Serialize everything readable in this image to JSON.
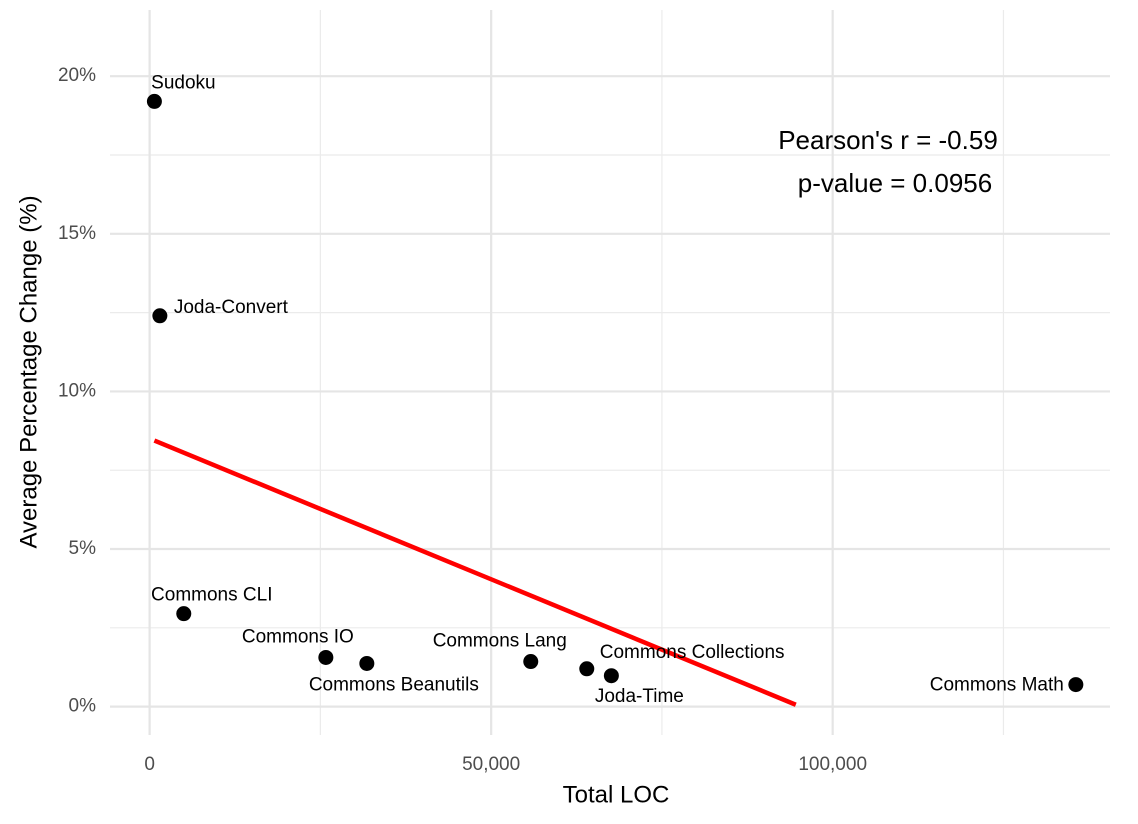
{
  "chart_data": {
    "type": "scatter",
    "x_label": "Total LOC",
    "y_label": "Average Percentage Change (%)",
    "annotation": [
      "Pearson's r = -0.59",
      "p-value = 0.0956"
    ],
    "series": [
      {
        "color": "#000000",
        "labels": [
          "Sudoku",
          "Joda-Convert",
          "Commons CLI",
          "Commons IO",
          "Commons Beanutils",
          "Commons Lang",
          "Commons Collections",
          "Joda-Time",
          "Commons Math"
        ],
        "x": [
          700,
          1500,
          5000,
          25800,
          31800,
          55800,
          64000,
          67600,
          135600
        ],
        "values": [
          19.2,
          12.4,
          2.95,
          1.56,
          1.37,
          1.43,
          1.2,
          0.98,
          0.7
        ]
      }
    ],
    "trend_line": {
      "color": "#ff0000",
      "x": [
        700,
        94600
      ],
      "values": [
        8.44,
        0.06
      ]
    },
    "xlim": [
      -5800,
      140600
    ],
    "ylim": [
      -0.9,
      22.1
    ],
    "xticks": [
      0,
      {
        "value": 50000,
        "label": "50,000"
      },
      {
        "value": 100000,
        "label": "100,000"
      }
    ],
    "yticks": [
      {
        "value": 0,
        "label": "0%"
      },
      {
        "value": 5,
        "label": "5%"
      },
      {
        "value": 10,
        "label": "10%"
      },
      {
        "value": 15,
        "label": "15%"
      },
      {
        "value": 20,
        "label": "20%"
      }
    ],
    "x_minor_grid": [
      25000,
      75000,
      125000
    ],
    "y_minor_grid": [
      2.5,
      7.5,
      12.5,
      17.5
    ],
    "grid": true
  }
}
